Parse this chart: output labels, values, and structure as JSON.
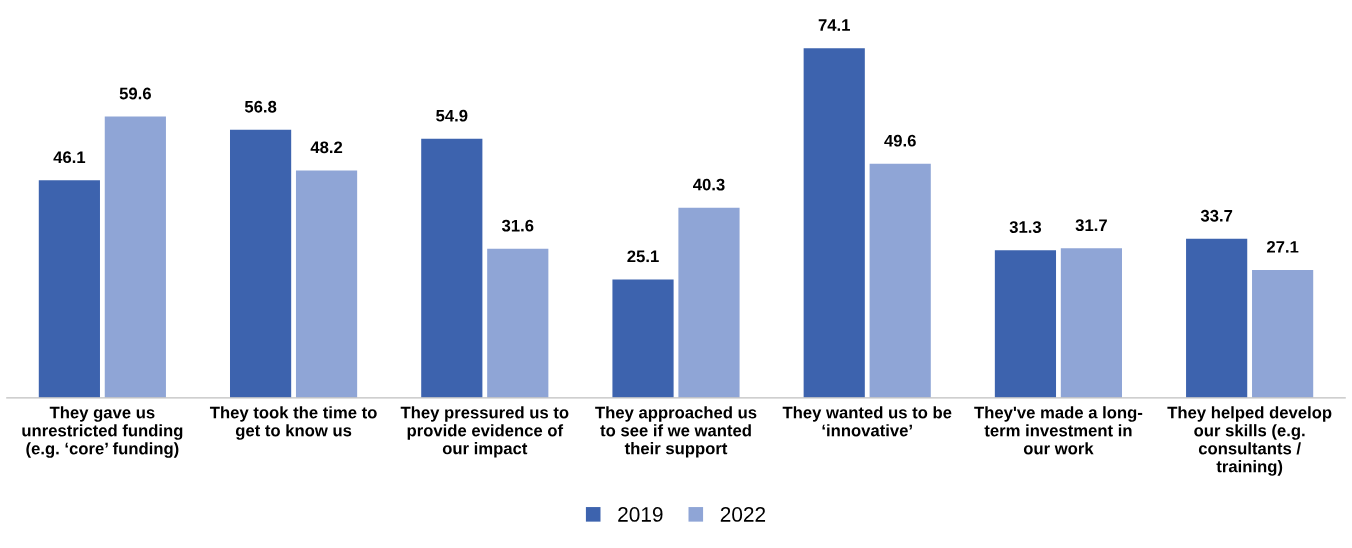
{
  "chart_data": {
    "type": "bar",
    "categories": [
      "They gave us\nunrestricted funding\n(e.g. ‘core’ funding)",
      "They took the time to\nget to know us",
      "They pressured us to\nprovide evidence of\nour impact",
      "They approached us\nto see if we wanted\ntheir support",
      "They wanted us to be\n‘innovative’",
      "They've made a long-\nterm investment in\nour work",
      "They helped develop\nour skills (e.g.\nconsultants /\ntraining)"
    ],
    "series": [
      {
        "name": "2019",
        "color": "#3d63ae",
        "values": [
          46.1,
          56.8,
          54.9,
          25.1,
          74.1,
          31.3,
          33.7
        ]
      },
      {
        "name": "2022",
        "color": "#8fa5d6",
        "values": [
          59.6,
          48.2,
          31.6,
          40.3,
          49.6,
          31.7,
          27.1
        ]
      }
    ],
    "data_labels": true,
    "legend": "bottom",
    "grid": false,
    "tick_labels": "x"
  }
}
